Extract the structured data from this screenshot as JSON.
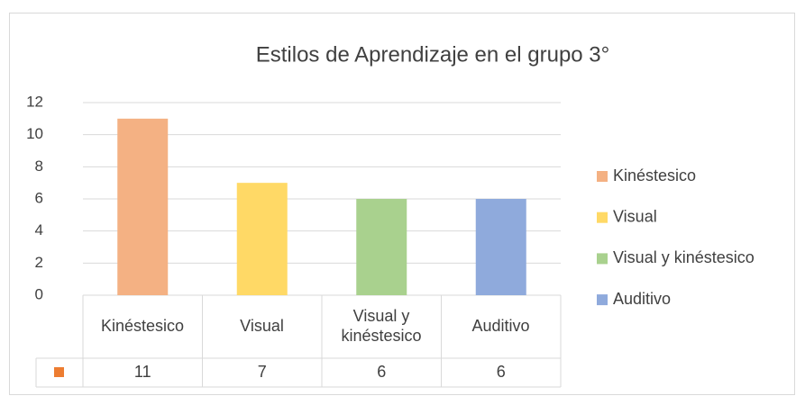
{
  "chart_data": {
    "type": "bar",
    "title": "Estilos de Aprendizaje en el grupo 3°",
    "categories": [
      "Kinéstesico",
      "Visual",
      "Visual y kinéstesico",
      "Auditivo"
    ],
    "values": [
      11,
      7,
      6,
      6
    ],
    "colors": [
      "#f4b183",
      "#ffd966",
      "#a9d18e",
      "#8faadc"
    ],
    "ylim": [
      0,
      12
    ],
    "yticks": [
      0,
      2,
      4,
      6,
      8,
      10,
      12
    ],
    "grid": true,
    "legend": "right",
    "data_table": true
  }
}
